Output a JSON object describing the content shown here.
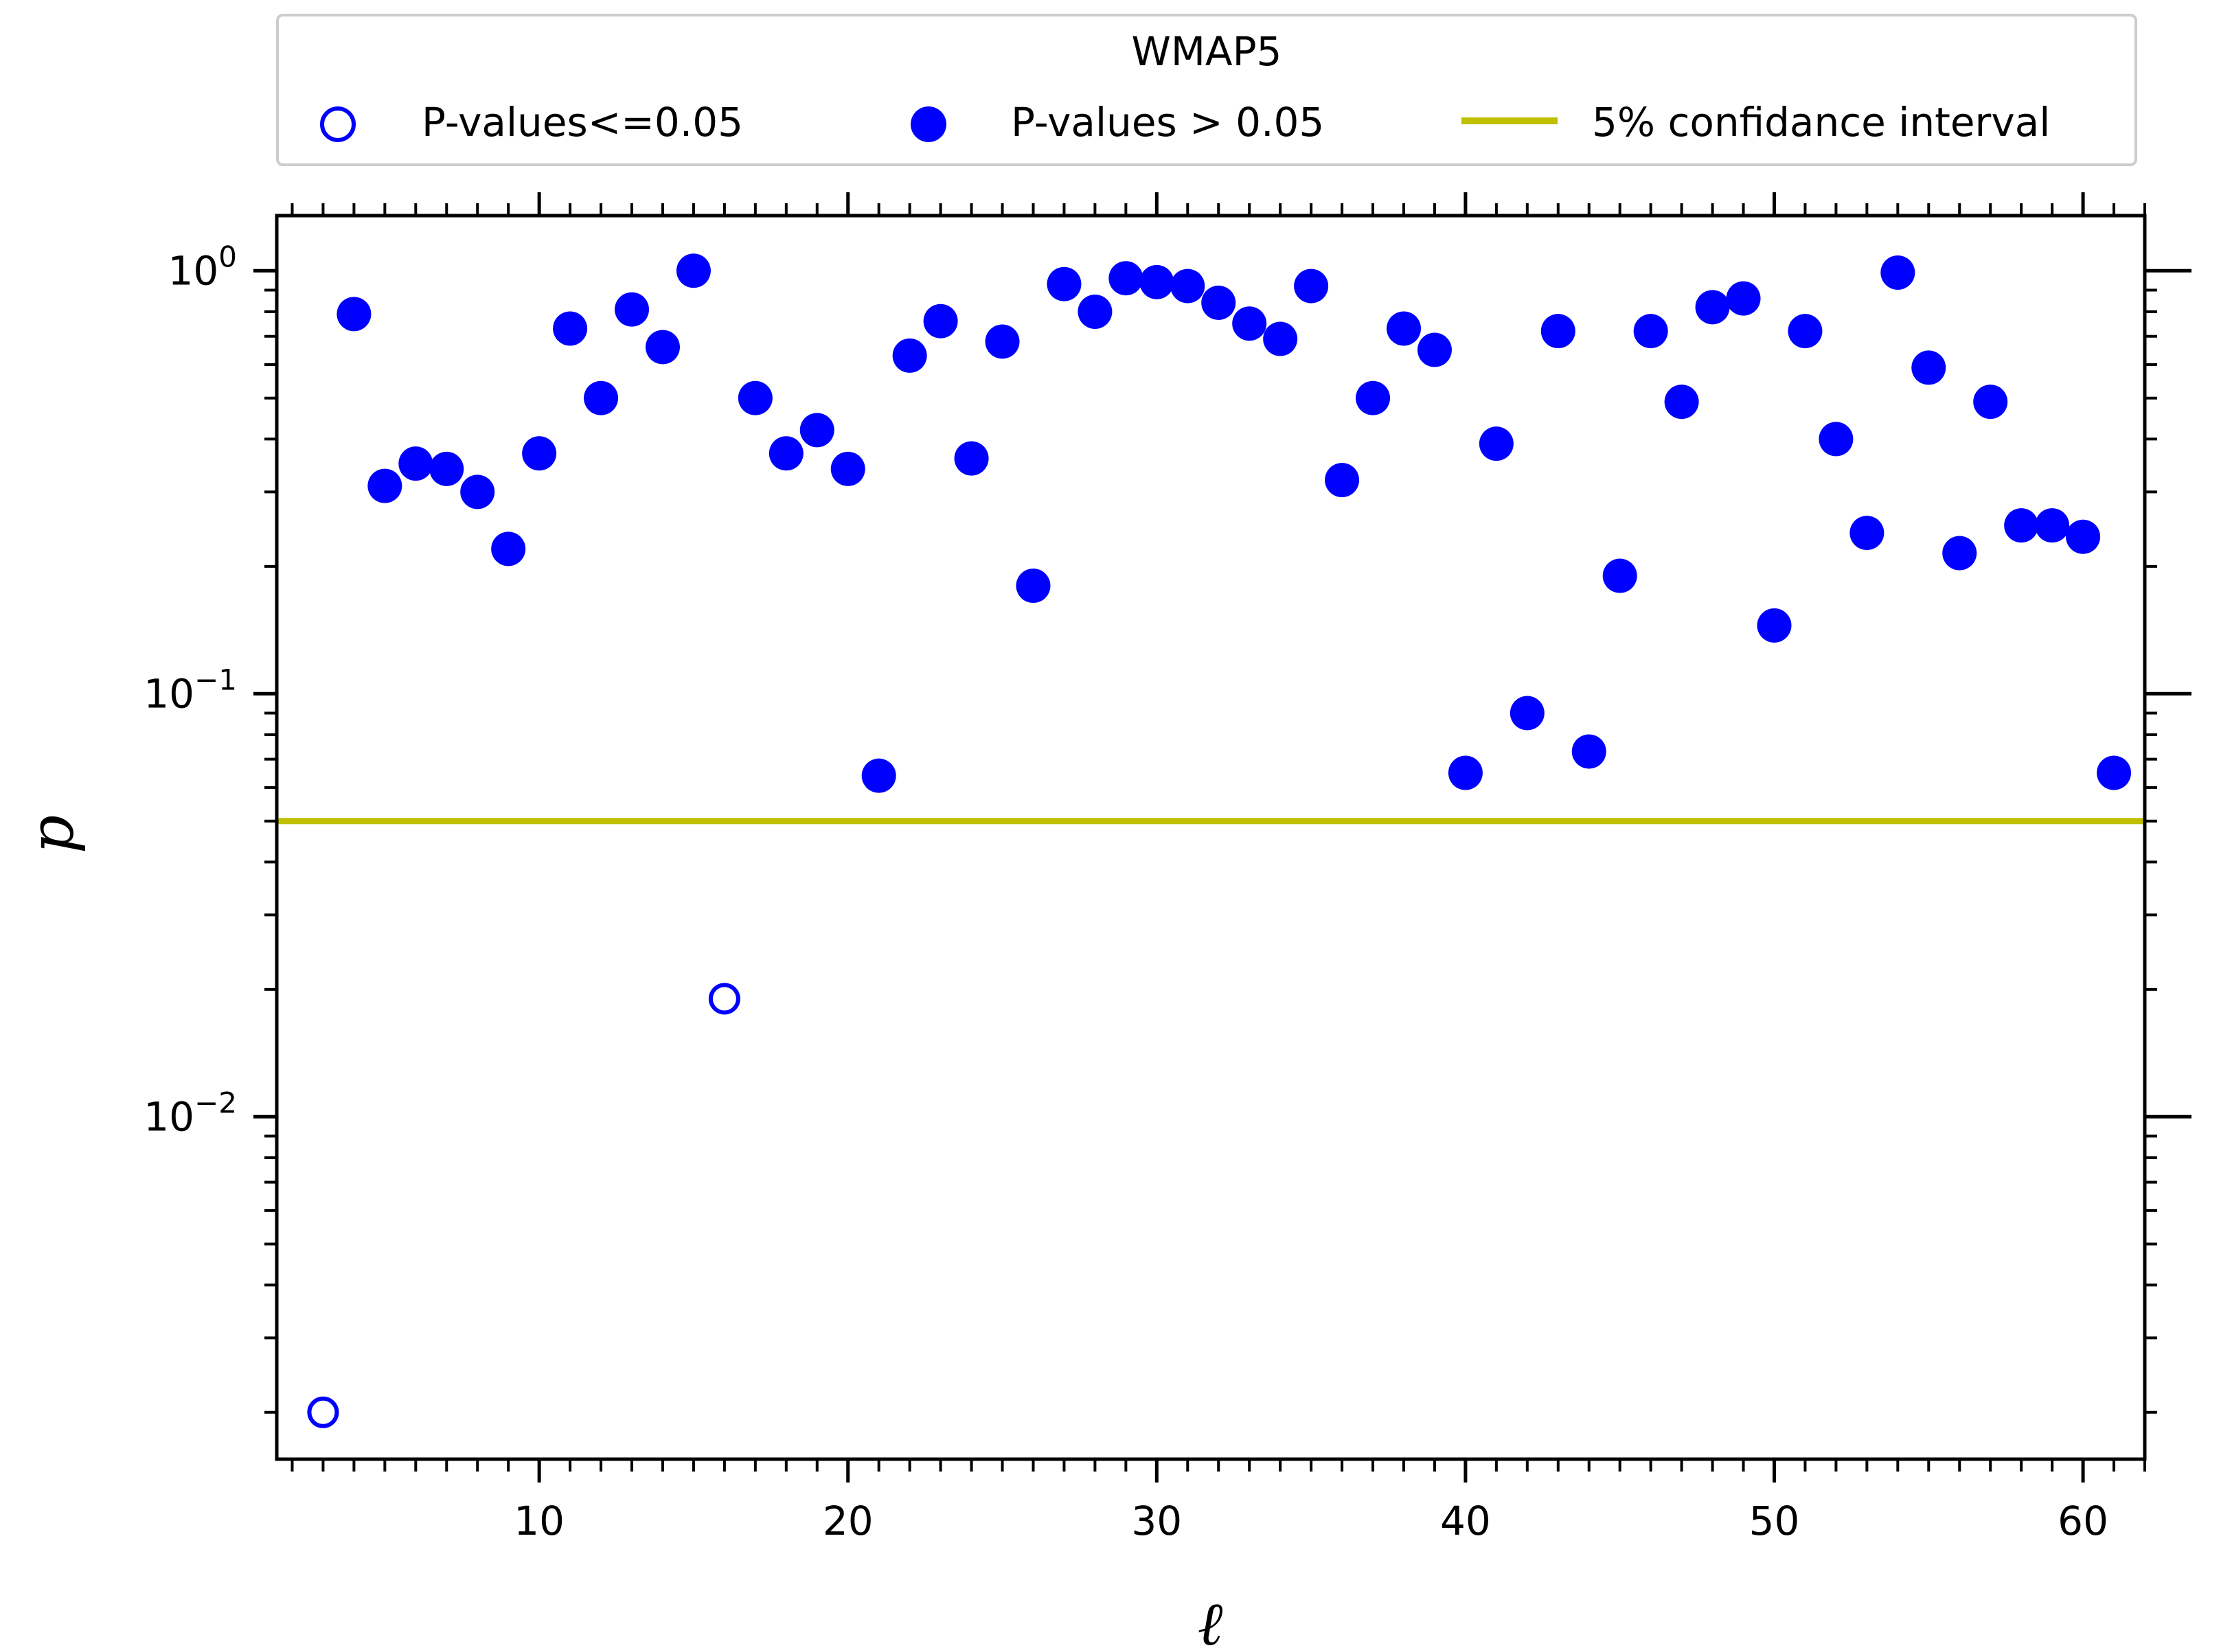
{
  "chart_data": {
    "type": "scatter",
    "title": "WMAP5",
    "xlabel": "ℓ",
    "ylabel": "p",
    "xscale": "linear",
    "yscale": "log",
    "xlim": [
      1.5,
      62
    ],
    "ylim": [
      0.00155,
      1.35
    ],
    "xticks": [
      10,
      20,
      30,
      40,
      50,
      60
    ],
    "xtick_labels": [
      "10",
      "20",
      "30",
      "40",
      "50",
      "60"
    ],
    "yticks": [
      {
        "value": 1,
        "base": "10",
        "exp": "0"
      },
      {
        "value": 0.1,
        "base": "10",
        "exp": "−1"
      },
      {
        "value": 0.01,
        "base": "10",
        "exp": "−2"
      }
    ],
    "threshold": {
      "value": 0.05,
      "label": "5% confidance interval",
      "color": "#bfbf00"
    },
    "legend": {
      "position": "top, above plot",
      "title": "WMAP5",
      "entries": [
        {
          "label": "P-values<=0.05",
          "marker": "open-circle",
          "color": "#0000ff"
        },
        {
          "label": "P-values > 0.05",
          "marker": "filled-circle",
          "color": "#0000ff"
        },
        {
          "label": "5% confidance interval",
          "marker": "line",
          "color": "#bfbf00"
        }
      ]
    },
    "series": [
      {
        "name": "P-values<=0.05",
        "marker": "open-circle",
        "color": "#0000ff",
        "points": [
          [
            3,
            0.002
          ],
          [
            16,
            0.019
          ]
        ]
      },
      {
        "name": "P-values > 0.05",
        "marker": "filled-circle",
        "color": "#0000ff",
        "points": [
          [
            4,
            0.79
          ],
          [
            5,
            0.31
          ],
          [
            6,
            0.35
          ],
          [
            7,
            0.34
          ],
          [
            8,
            0.3
          ],
          [
            9,
            0.22
          ],
          [
            10,
            0.37
          ],
          [
            11,
            0.73
          ],
          [
            12,
            0.5
          ],
          [
            13,
            0.81
          ],
          [
            14,
            0.66
          ],
          [
            15,
            1.0
          ],
          [
            17,
            0.5
          ],
          [
            18,
            0.37
          ],
          [
            19,
            0.42
          ],
          [
            20,
            0.34
          ],
          [
            21,
            0.064
          ],
          [
            22,
            0.63
          ],
          [
            23,
            0.76
          ],
          [
            24,
            0.36
          ],
          [
            25,
            0.68
          ],
          [
            26,
            0.18
          ],
          [
            27,
            0.93
          ],
          [
            28,
            0.8
          ],
          [
            29,
            0.96
          ],
          [
            30,
            0.94
          ],
          [
            31,
            0.92
          ],
          [
            32,
            0.84
          ],
          [
            33,
            0.75
          ],
          [
            34,
            0.69
          ],
          [
            35,
            0.92
          ],
          [
            36,
            0.32
          ],
          [
            37,
            0.5
          ],
          [
            38,
            0.73
          ],
          [
            39,
            0.65
          ],
          [
            40,
            0.065
          ],
          [
            41,
            0.39
          ],
          [
            42,
            0.09
          ],
          [
            43,
            0.72
          ],
          [
            44,
            0.073
          ],
          [
            45,
            0.19
          ],
          [
            46,
            0.72
          ],
          [
            47,
            0.49
          ],
          [
            48,
            0.82
          ],
          [
            49,
            0.86
          ],
          [
            50,
            0.145
          ],
          [
            51,
            0.72
          ],
          [
            52,
            0.4
          ],
          [
            53,
            0.24
          ],
          [
            54,
            0.99
          ],
          [
            55,
            0.59
          ],
          [
            56,
            0.215
          ],
          [
            57,
            0.49
          ],
          [
            58,
            0.25
          ],
          [
            59,
            0.25
          ],
          [
            60,
            0.235
          ],
          [
            61,
            0.065
          ]
        ]
      }
    ]
  }
}
